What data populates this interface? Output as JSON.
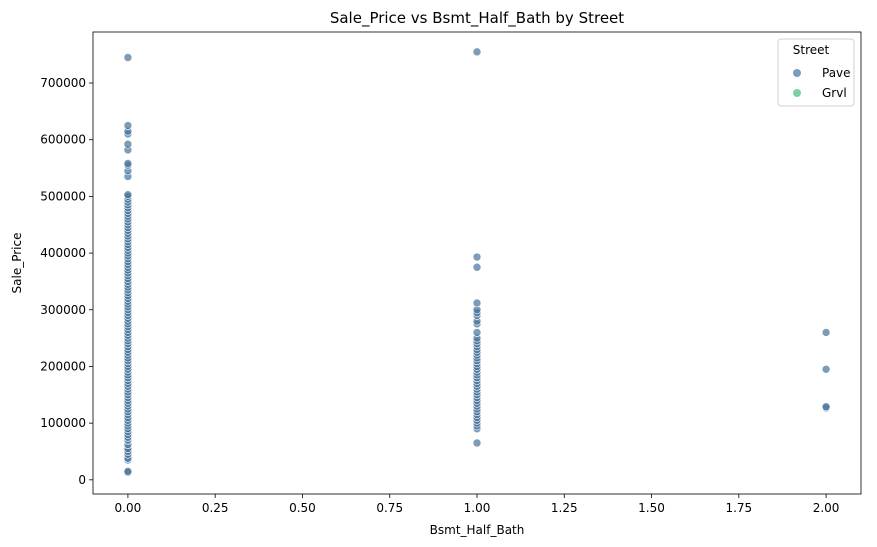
{
  "chart_data": {
    "type": "scatter",
    "title": "Sale_Price vs Bsmt_Half_Bath by Street",
    "xlabel": "Bsmt_Half_Bath",
    "ylabel": "Sale_Price",
    "xlim": [
      -0.1,
      2.1
    ],
    "ylim": [
      -25000,
      790000
    ],
    "xticks": [
      "0.00",
      "0.25",
      "0.50",
      "0.75",
      "1.00",
      "1.25",
      "1.50",
      "1.75",
      "2.00"
    ],
    "xtick_values": [
      0,
      0.25,
      0.5,
      0.75,
      1.0,
      1.25,
      1.5,
      1.75,
      2.0
    ],
    "yticks": [
      "0",
      "100000",
      "200000",
      "300000",
      "400000",
      "500000",
      "600000",
      "700000"
    ],
    "ytick_values": [
      0,
      100000,
      200000,
      300000,
      400000,
      500000,
      600000,
      700000
    ],
    "grid": false,
    "legend": {
      "title": "Street",
      "placement": "top-right",
      "entries": [
        {
          "name": "Pave",
          "color": "#46729a"
        },
        {
          "name": "Grvl",
          "color": "#5cc58a"
        }
      ]
    },
    "series": [
      {
        "name": "Pave",
        "color": "#46729a",
        "points": [
          [
            0,
            13000
          ],
          [
            0,
            15000
          ],
          [
            0,
            35000
          ],
          [
            0,
            38000
          ],
          [
            0,
            45000
          ],
          [
            0,
            50000
          ],
          [
            0,
            55000
          ],
          [
            0,
            62000
          ],
          [
            0,
            70000
          ],
          [
            0,
            75000
          ],
          [
            0,
            80000
          ],
          [
            0,
            85000
          ],
          [
            0,
            90000
          ],
          [
            0,
            95000
          ],
          [
            0,
            100000
          ],
          [
            0,
            105000
          ],
          [
            0,
            110000
          ],
          [
            0,
            115000
          ],
          [
            0,
            120000
          ],
          [
            0,
            125000
          ],
          [
            0,
            130000
          ],
          [
            0,
            135000
          ],
          [
            0,
            140000
          ],
          [
            0,
            145000
          ],
          [
            0,
            150000
          ],
          [
            0,
            155000
          ],
          [
            0,
            160000
          ],
          [
            0,
            165000
          ],
          [
            0,
            170000
          ],
          [
            0,
            175000
          ],
          [
            0,
            180000
          ],
          [
            0,
            185000
          ],
          [
            0,
            190000
          ],
          [
            0,
            195000
          ],
          [
            0,
            200000
          ],
          [
            0,
            205000
          ],
          [
            0,
            210000
          ],
          [
            0,
            215000
          ],
          [
            0,
            220000
          ],
          [
            0,
            225000
          ],
          [
            0,
            230000
          ],
          [
            0,
            235000
          ],
          [
            0,
            240000
          ],
          [
            0,
            245000
          ],
          [
            0,
            250000
          ],
          [
            0,
            255000
          ],
          [
            0,
            260000
          ],
          [
            0,
            265000
          ],
          [
            0,
            270000
          ],
          [
            0,
            275000
          ],
          [
            0,
            280000
          ],
          [
            0,
            285000
          ],
          [
            0,
            290000
          ],
          [
            0,
            295000
          ],
          [
            0,
            300000
          ],
          [
            0,
            305000
          ],
          [
            0,
            310000
          ],
          [
            0,
            315000
          ],
          [
            0,
            320000
          ],
          [
            0,
            325000
          ],
          [
            0,
            330000
          ],
          [
            0,
            335000
          ],
          [
            0,
            340000
          ],
          [
            0,
            345000
          ],
          [
            0,
            350000
          ],
          [
            0,
            355000
          ],
          [
            0,
            360000
          ],
          [
            0,
            365000
          ],
          [
            0,
            370000
          ],
          [
            0,
            375000
          ],
          [
            0,
            380000
          ],
          [
            0,
            385000
          ],
          [
            0,
            390000
          ],
          [
            0,
            395000
          ],
          [
            0,
            400000
          ],
          [
            0,
            405000
          ],
          [
            0,
            410000
          ],
          [
            0,
            415000
          ],
          [
            0,
            420000
          ],
          [
            0,
            425000
          ],
          [
            0,
            430000
          ],
          [
            0,
            435000
          ],
          [
            0,
            440000
          ],
          [
            0,
            445000
          ],
          [
            0,
            450000
          ],
          [
            0,
            455000
          ],
          [
            0,
            460000
          ],
          [
            0,
            465000
          ],
          [
            0,
            470000
          ],
          [
            0,
            475000
          ],
          [
            0,
            480000
          ],
          [
            0,
            485000
          ],
          [
            0,
            490000
          ],
          [
            0,
            495000
          ],
          [
            0,
            500000
          ],
          [
            0,
            503000
          ],
          [
            0,
            535000
          ],
          [
            0,
            545000
          ],
          [
            0,
            555000
          ],
          [
            0,
            558000
          ],
          [
            0,
            582000
          ],
          [
            0,
            592000
          ],
          [
            0,
            610000
          ],
          [
            0,
            615000
          ],
          [
            0,
            625000
          ],
          [
            0,
            745000
          ],
          [
            1,
            65000
          ],
          [
            1,
            90000
          ],
          [
            1,
            95000
          ],
          [
            1,
            100000
          ],
          [
            1,
            105000
          ],
          [
            1,
            110000
          ],
          [
            1,
            115000
          ],
          [
            1,
            120000
          ],
          [
            1,
            125000
          ],
          [
            1,
            130000
          ],
          [
            1,
            135000
          ],
          [
            1,
            140000
          ],
          [
            1,
            145000
          ],
          [
            1,
            150000
          ],
          [
            1,
            155000
          ],
          [
            1,
            160000
          ],
          [
            1,
            165000
          ],
          [
            1,
            170000
          ],
          [
            1,
            175000
          ],
          [
            1,
            180000
          ],
          [
            1,
            185000
          ],
          [
            1,
            190000
          ],
          [
            1,
            195000
          ],
          [
            1,
            200000
          ],
          [
            1,
            205000
          ],
          [
            1,
            210000
          ],
          [
            1,
            215000
          ],
          [
            1,
            220000
          ],
          [
            1,
            225000
          ],
          [
            1,
            230000
          ],
          [
            1,
            235000
          ],
          [
            1,
            240000
          ],
          [
            1,
            245000
          ],
          [
            1,
            250000
          ],
          [
            1,
            260000
          ],
          [
            1,
            275000
          ],
          [
            1,
            280000
          ],
          [
            1,
            290000
          ],
          [
            1,
            295000
          ],
          [
            1,
            300000
          ],
          [
            1,
            312000
          ],
          [
            1,
            375000
          ],
          [
            1,
            393000
          ],
          [
            1,
            755000
          ],
          [
            2,
            127000
          ],
          [
            2,
            129000
          ],
          [
            2,
            195000
          ],
          [
            2,
            260000
          ]
        ]
      },
      {
        "name": "Grvl",
        "color": "#5cc58a",
        "points": []
      }
    ]
  }
}
